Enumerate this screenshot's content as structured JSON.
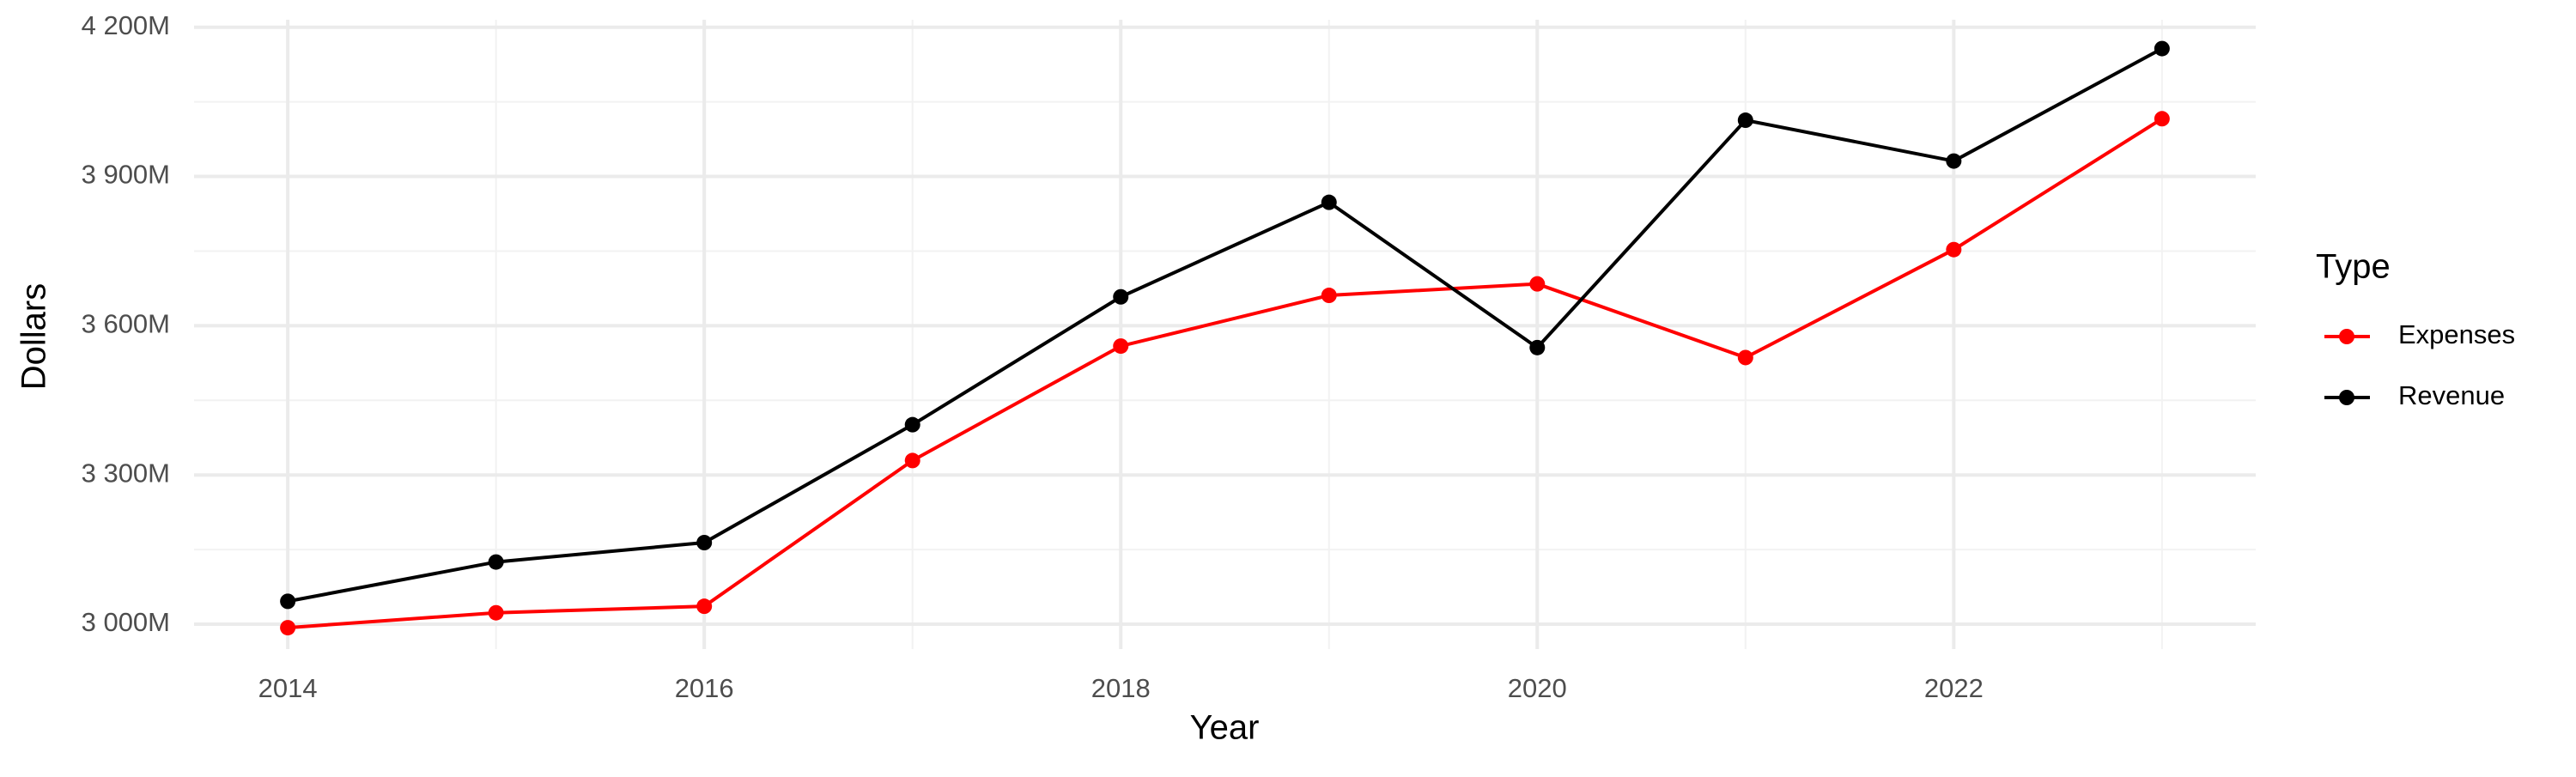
{
  "chart_data": {
    "type": "line",
    "x_label": "Year",
    "y_label": "Dollars",
    "x": [
      2014,
      2015,
      2016,
      2017,
      2018,
      2019,
      2020,
      2021,
      2022,
      2023
    ],
    "series": [
      {
        "name": "Expenses",
        "color": "#ff0000",
        "values": [
          2993,
          3023,
          3036,
          3329,
          3559,
          3661,
          3684,
          3536,
          3753,
          4016
        ]
      },
      {
        "name": "Revenue",
        "color": "#000000",
        "values": [
          3046,
          3125,
          3164,
          3401,
          3658,
          3848,
          3556,
          4013,
          3931,
          4157
        ]
      }
    ],
    "xlim": [
      2013.55,
      2023.45
    ],
    "xticks": [
      2014,
      2016,
      2018,
      2020,
      2022
    ],
    "ylim": [
      2950,
      4215
    ],
    "yticks": [
      {
        "value": 3000,
        "label": "3 000M"
      },
      {
        "value": 3300,
        "label": "3 300M"
      },
      {
        "value": 3600,
        "label": "3 600M"
      },
      {
        "value": 3900,
        "label": "3 900M"
      },
      {
        "value": 4200,
        "label": "4 200M"
      }
    ],
    "grid": true,
    "legend_title": "Type",
    "legend_position": "right"
  }
}
